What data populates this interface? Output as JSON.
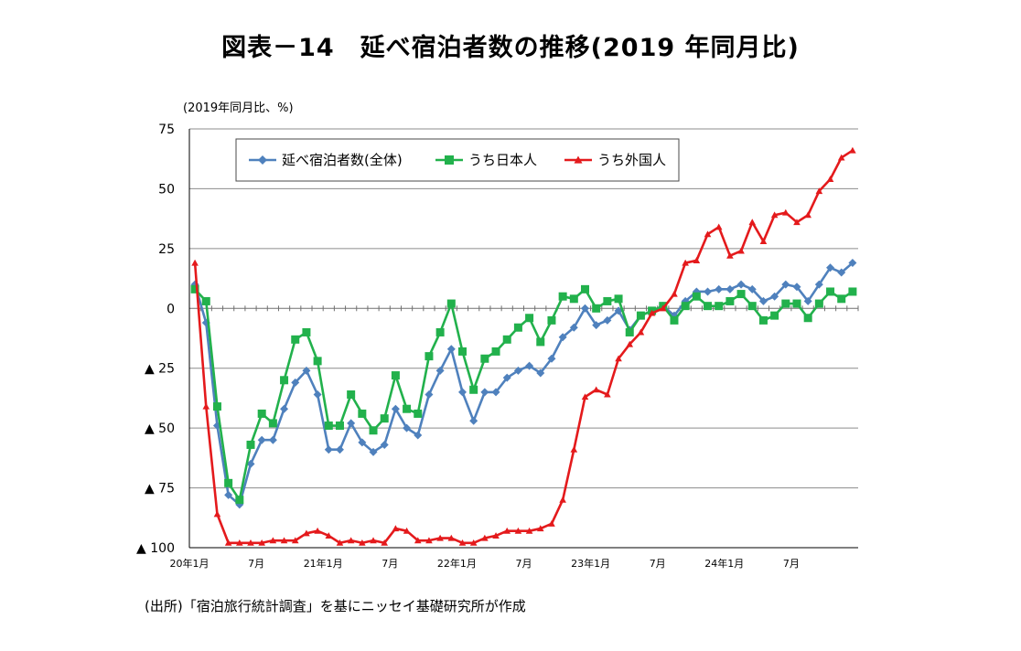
{
  "title": "図表－14　延べ宿泊者数の推移(2019 年同月比)",
  "unit_label": "(2019年同月比、%)",
  "source": "(出所)「宿泊旅行統計調査」を基にニッセイ基礎研究所が作成",
  "chart_data": {
    "type": "line",
    "ylim": [
      -100,
      75
    ],
    "grid": true,
    "legend_placement": "top-left",
    "y_ticks": [
      {
        "value": 75,
        "label": "75"
      },
      {
        "value": 50,
        "label": "50"
      },
      {
        "value": 25,
        "label": "25"
      },
      {
        "value": 0,
        "label": "0"
      },
      {
        "value": -25,
        "label": "▲ 25"
      },
      {
        "value": -50,
        "label": "▲ 50"
      },
      {
        "value": -75,
        "label": "▲ 75"
      },
      {
        "value": -100,
        "label": "▲ 100"
      }
    ],
    "x": [
      "2020-01",
      "2020-02",
      "2020-03",
      "2020-04",
      "2020-05",
      "2020-06",
      "2020-07",
      "2020-08",
      "2020-09",
      "2020-10",
      "2020-11",
      "2020-12",
      "2021-01",
      "2021-02",
      "2021-03",
      "2021-04",
      "2021-05",
      "2021-06",
      "2021-07",
      "2021-08",
      "2021-09",
      "2021-10",
      "2021-11",
      "2021-12",
      "2022-01",
      "2022-02",
      "2022-03",
      "2022-04",
      "2022-05",
      "2022-06",
      "2022-07",
      "2022-08",
      "2022-09",
      "2022-10",
      "2022-11",
      "2022-12",
      "2023-01",
      "2023-02",
      "2023-03",
      "2023-04",
      "2023-05",
      "2023-06",
      "2023-07",
      "2023-08",
      "2023-09",
      "2023-10",
      "2023-11",
      "2023-12",
      "2024-01",
      "2024-02",
      "2024-03",
      "2024-04",
      "2024-05",
      "2024-06",
      "2024-07",
      "2024-08",
      "2024-09",
      "2024-10",
      "2024-11",
      "2024-12"
    ],
    "x_tick_labels": [
      {
        "index": 0,
        "label": "20年1月"
      },
      {
        "index": 6,
        "label": "7月"
      },
      {
        "index": 12,
        "label": "21年1月"
      },
      {
        "index": 18,
        "label": "7月"
      },
      {
        "index": 24,
        "label": "22年1月"
      },
      {
        "index": 30,
        "label": "7月"
      },
      {
        "index": 36,
        "label": "23年1月"
      },
      {
        "index": 42,
        "label": "7月"
      },
      {
        "index": 48,
        "label": "24年1月"
      },
      {
        "index": 54,
        "label": "7月"
      }
    ],
    "series": [
      {
        "name": "延べ宿泊者数(全体)",
        "color": "#4F81BD",
        "marker": "diamond",
        "values": [
          10,
          -6,
          -49,
          -78,
          -82,
          -65,
          -55,
          -55,
          -42,
          -31,
          -26,
          -36,
          -59,
          -59,
          -48,
          -56,
          -60,
          -57,
          -42,
          -50,
          -53,
          -36,
          -26,
          -17,
          -35,
          -47,
          -35,
          -35,
          -29,
          -26,
          -24,
          -27,
          -21,
          -12,
          -8,
          0,
          -7,
          -5,
          -1,
          -9,
          -3,
          -1,
          1,
          -3,
          3,
          7,
          7,
          8,
          8,
          10,
          8,
          3,
          5,
          10,
          9,
          3,
          10,
          17,
          15,
          19
        ]
      },
      {
        "name": "うち日本人",
        "color": "#22B14C",
        "marker": "square",
        "values": [
          8,
          3,
          -41,
          -73,
          -80,
          -57,
          -44,
          -48,
          -30,
          -13,
          -10,
          -22,
          -49,
          -49,
          -36,
          -44,
          -51,
          -46,
          -28,
          -42,
          -44,
          -20,
          -10,
          2,
          -18,
          -34,
          -21,
          -18,
          -13,
          -8,
          -4,
          -14,
          -5,
          5,
          4,
          8,
          0,
          3,
          4,
          -10,
          -3,
          -1,
          1,
          -5,
          1,
          5,
          1,
          1,
          3,
          6,
          1,
          -5,
          -3,
          2,
          2,
          -4,
          2,
          7,
          4,
          7
        ]
      },
      {
        "name": "うち外国人",
        "color": "#E41A1C",
        "marker": "triangle",
        "values": [
          19,
          -41,
          -86,
          -98,
          -98,
          -98,
          -98,
          -97,
          -97,
          -97,
          -94,
          -93,
          -95,
          -98,
          -97,
          -98,
          -97,
          -98,
          -92,
          -93,
          -97,
          -97,
          -96,
          -96,
          -98,
          -98,
          -96,
          -95,
          -93,
          -93,
          -93,
          -92,
          -90,
          -80,
          -59,
          -37,
          -34,
          -36,
          -21,
          -15,
          -10,
          -2,
          0,
          6,
          19,
          20,
          31,
          34,
          22,
          24,
          36,
          28,
          39,
          40,
          36,
          39,
          49,
          54,
          63,
          66
        ]
      }
    ]
  }
}
